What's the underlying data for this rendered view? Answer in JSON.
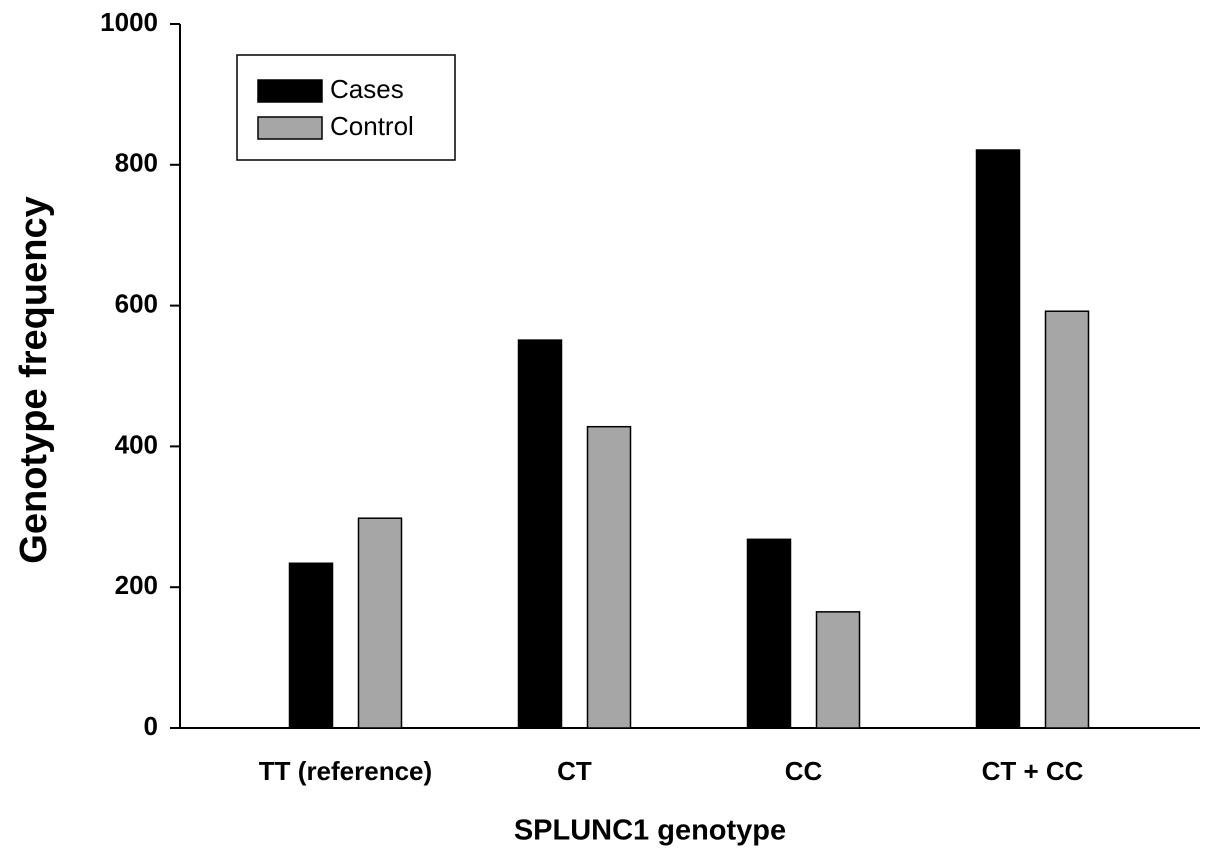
{
  "chart_data": {
    "type": "bar",
    "x_label": "SPLUNC1 genotype",
    "y_label": "Genotype frequency",
    "categories": [
      "TT (reference)",
      "CT",
      "CC",
      "CT + CC"
    ],
    "series": [
      {
        "name": "Cases",
        "color": "#000000",
        "values": [
          234,
          551,
          268,
          821
        ]
      },
      {
        "name": "Control",
        "color": "#a6a6a6",
        "values": [
          298,
          428,
          165,
          592
        ]
      }
    ],
    "ylim": [
      0,
      1000
    ],
    "yticks": [
      0,
      200,
      400,
      600,
      800,
      1000
    ],
    "legend": "upper left"
  }
}
